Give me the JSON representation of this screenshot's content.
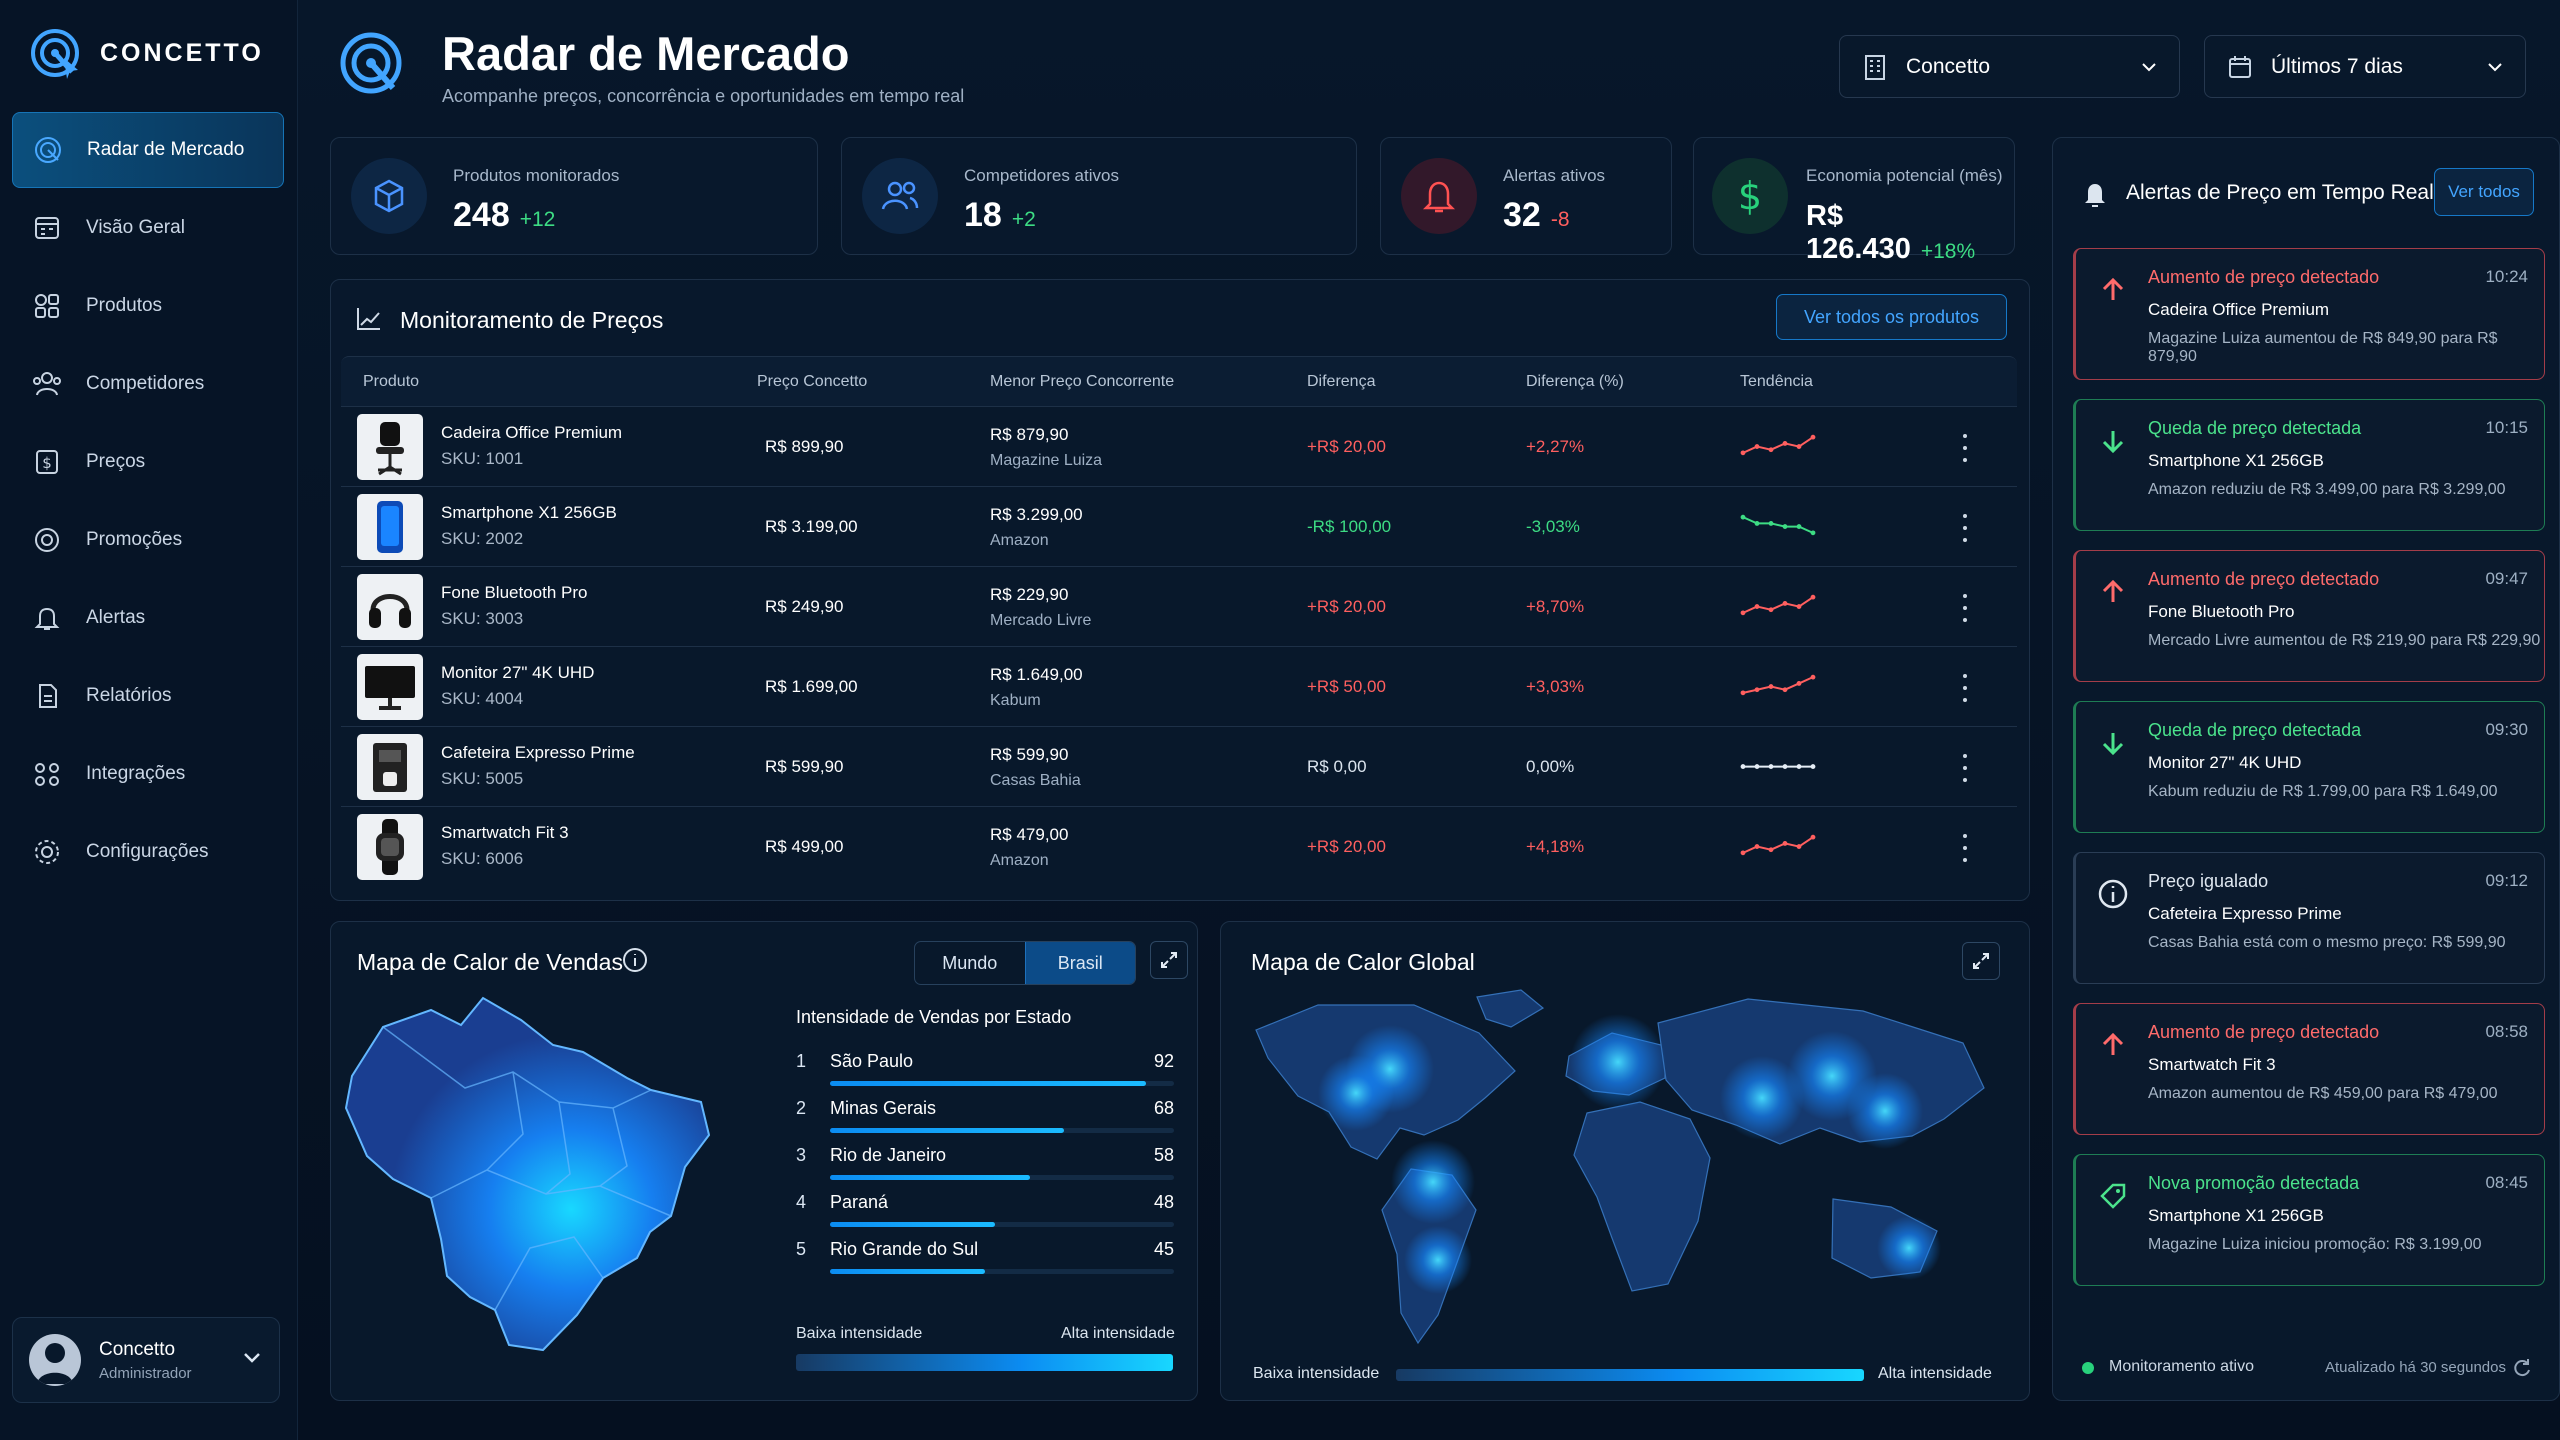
{
  "app": {
    "name": "CONCETTO"
  },
  "header": {
    "title": "Radar de Mercado",
    "subtitle": "Acompanhe preços, concorrência e oportunidades em tempo real",
    "company_select": "Concetto",
    "period_select": "Últimos 7 dias"
  },
  "sidebar": {
    "items": [
      {
        "label": "Radar de Mercado",
        "icon": "radar-icon",
        "active": true
      },
      {
        "label": "Visão Geral",
        "icon": "calendar-grid-icon",
        "active": false
      },
      {
        "label": "Produtos",
        "icon": "grid-icon",
        "active": false
      },
      {
        "label": "Competidores",
        "icon": "users-icon",
        "active": false
      },
      {
        "label": "Preços",
        "icon": "dollar-icon",
        "active": false
      },
      {
        "label": "Promoções",
        "icon": "target-icon",
        "active": false
      },
      {
        "label": "Alertas",
        "icon": "bell-icon",
        "active": false
      },
      {
        "label": "Relatórios",
        "icon": "document-icon",
        "active": false
      },
      {
        "label": "Integrações",
        "icon": "integration-icon",
        "active": false
      },
      {
        "label": "Configurações",
        "icon": "gear-icon",
        "active": false
      }
    ],
    "user": {
      "name": "Concetto",
      "role": "Administrador"
    }
  },
  "kpis": [
    {
      "label": "Produtos monitorados",
      "value": "248",
      "delta": "+12",
      "icon": "box-icon",
      "color": "#4a93ff"
    },
    {
      "label": "Competidores ativos",
      "value": "18",
      "delta": "+2",
      "icon": "users-icon",
      "color": "#4a93ff"
    },
    {
      "label": "Alertas ativos",
      "value": "32",
      "delta": "-8",
      "icon": "bell-icon",
      "color": "#ff5252"
    },
    {
      "label": "Economia potencial (mês)",
      "value": "R$ 126.430",
      "delta": "+18%",
      "icon": "dollar-icon",
      "color": "#28d17c"
    }
  ],
  "monitor": {
    "title": "Monitoramento de Preços",
    "button": "Ver todos os produtos",
    "columns": [
      "Produto",
      "Preço Concetto",
      "Menor Preço Concorrente",
      "Diferença",
      "Diferença (%)",
      "Tendência"
    ],
    "rows": [
      {
        "name": "Cadeira Office Premium",
        "sku": "SKU: 1001",
        "price": "R$ 899,90",
        "competitor_price": "R$ 879,90",
        "competitor": "Magazine Luiza",
        "diff": "+R$ 20,00",
        "diff_pct": "+2,27%",
        "trend": "up",
        "trend_values": [
          3,
          5,
          4,
          6,
          5,
          8
        ]
      },
      {
        "name": "Smartphone X1 256GB",
        "sku": "SKU: 2002",
        "price": "R$ 3.199,00",
        "competitor_price": "R$ 3.299,00",
        "competitor": "Amazon",
        "diff": "-R$ 100,00",
        "diff_pct": "-3,03%",
        "trend": "down",
        "trend_values": [
          8,
          6,
          6,
          5,
          5,
          3
        ]
      },
      {
        "name": "Fone Bluetooth Pro",
        "sku": "SKU: 3003",
        "price": "R$ 249,90",
        "competitor_price": "R$ 229,90",
        "competitor": "Mercado Livre",
        "diff": "+R$ 20,00",
        "diff_pct": "+8,70%",
        "trend": "up",
        "trend_values": [
          3,
          5,
          4,
          6,
          5,
          8
        ]
      },
      {
        "name": "Monitor 27\" 4K UHD",
        "sku": "SKU: 4004",
        "price": "R$ 1.699,00",
        "competitor_price": "R$ 1.649,00",
        "competitor": "Kabum",
        "diff": "+R$ 50,00",
        "diff_pct": "+3,03%",
        "trend": "up",
        "trend_values": [
          3,
          4,
          5,
          4,
          6,
          8
        ]
      },
      {
        "name": "Cafeteira Expresso Prime",
        "sku": "SKU: 5005",
        "price": "R$ 599,90",
        "competitor_price": "R$ 599,90",
        "competitor": "Casas Bahia",
        "diff": "R$ 0,00",
        "diff_pct": "0,00%",
        "trend": "flat",
        "trend_values": [
          5,
          5,
          5,
          5,
          5,
          5
        ]
      },
      {
        "name": "Smartwatch Fit 3",
        "sku": "SKU: 6006",
        "price": "R$ 499,00",
        "competitor_price": "R$ 479,00",
        "competitor": "Amazon",
        "diff": "+R$ 20,00",
        "diff_pct": "+4,18%",
        "trend": "up",
        "trend_values": [
          3,
          5,
          4,
          6,
          5,
          8
        ]
      }
    ]
  },
  "heatmap": {
    "title": "Mapa de Calor de Vendas",
    "toggle": [
      "Mundo",
      "Brasil"
    ],
    "active_toggle": "Brasil",
    "list_title": "Intensidade de Vendas por Estado",
    "states": [
      {
        "rank": "1",
        "name": "São Paulo",
        "value": 92
      },
      {
        "rank": "2",
        "name": "Minas Gerais",
        "value": 68
      },
      {
        "rank": "3",
        "name": "Rio de Janeiro",
        "value": 58
      },
      {
        "rank": "4",
        "name": "Paraná",
        "value": 48
      },
      {
        "rank": "5",
        "name": "Rio Grande do Sul",
        "value": 45
      }
    ],
    "low": "Baixa intensidade",
    "high": "Alta intensidade"
  },
  "global": {
    "title": "Mapa de Calor Global",
    "low": "Baixa intensidade",
    "high": "Alta intensidade"
  },
  "alerts": {
    "title": "Alertas de Preço em Tempo Real",
    "button": "Ver todos",
    "items": [
      {
        "type": "up",
        "title": "Aumento de preço detectado",
        "time": "10:24",
        "product": "Cadeira Office Premium",
        "desc": "Magazine Luiza aumentou de R$ 849,90 para R$ 879,90",
        "color": "#ff6b6b"
      },
      {
        "type": "down",
        "title": "Queda de preço detectada",
        "time": "10:15",
        "product": "Smartphone X1 256GB",
        "desc": "Amazon reduziu de R$ 3.499,00 para R$ 3.299,00",
        "color": "#4be38c"
      },
      {
        "type": "up",
        "title": "Aumento de preço detectado",
        "time": "09:47",
        "product": "Fone Bluetooth Pro",
        "desc": "Mercado Livre aumentou de R$ 219,90 para R$ 229,90",
        "color": "#ff6b6b"
      },
      {
        "type": "down",
        "title": "Queda de preço detectada",
        "time": "09:30",
        "product": "Monitor 27\" 4K UHD",
        "desc": "Kabum reduziu de R$ 1.799,00 para R$ 1.649,00",
        "color": "#4be38c"
      },
      {
        "type": "info",
        "title": "Preço igualado",
        "time": "09:12",
        "product": "Cafeteira Expresso Prime",
        "desc": "Casas Bahia está com o mesmo preço: R$ 599,90",
        "color": "#dfe7f0"
      },
      {
        "type": "up",
        "title": "Aumento de preço detectado",
        "time": "08:58",
        "product": "Smartwatch Fit 3",
        "desc": "Amazon aumentou de R$ 459,00 para R$ 479,00",
        "color": "#ff6b6b"
      },
      {
        "type": "promo",
        "title": "Nova promoção detectada",
        "time": "08:45",
        "product": "Smartphone X1 256GB",
        "desc": "Magazine Luiza iniciou promoção: R$ 3.199,00",
        "color": "#4be38c"
      }
    ],
    "status": "Monitoramento ativo",
    "updated": "Atualizado há 30 segundos"
  }
}
